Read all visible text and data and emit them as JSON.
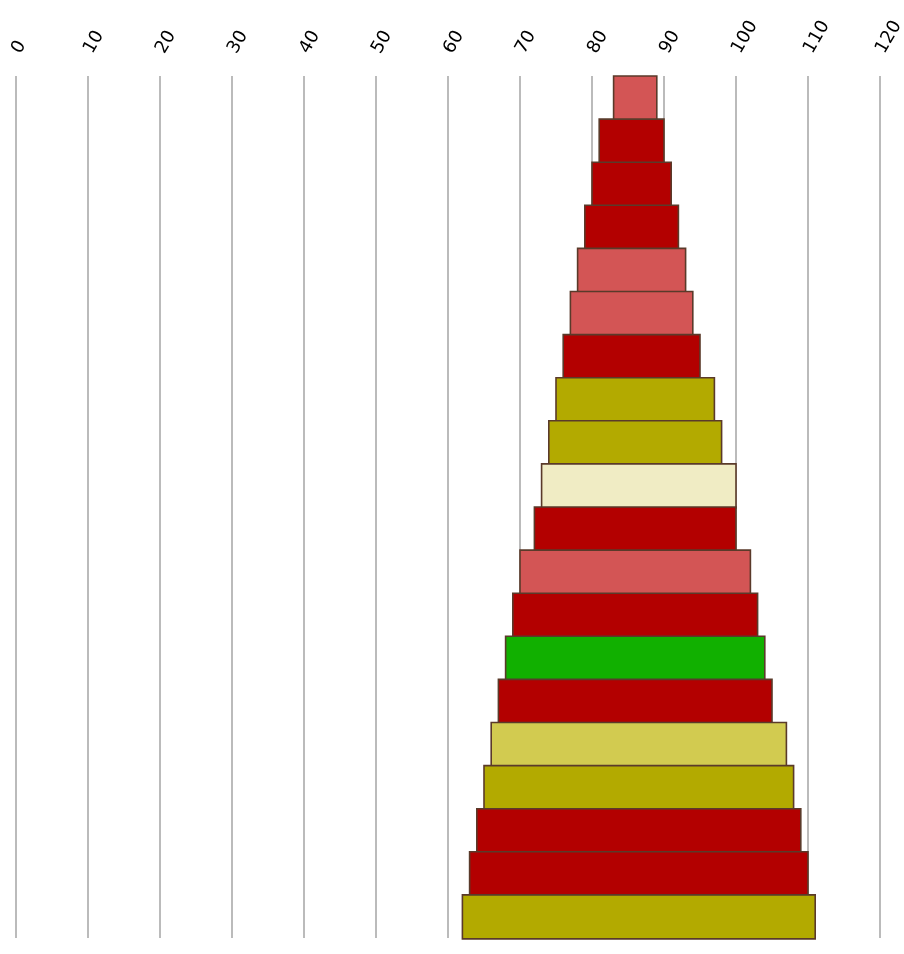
{
  "chart_data": {
    "type": "bar",
    "orientation": "horizontal",
    "categories": [
      null,
      null,
      null,
      null,
      null,
      null,
      null,
      null,
      null,
      null,
      null,
      null,
      null,
      null,
      null,
      null,
      null,
      null,
      null,
      null
    ],
    "base": [
      83,
      81,
      80,
      79,
      78,
      77,
      76,
      75,
      74,
      73,
      72,
      70,
      69,
      68,
      67,
      66,
      65,
      64,
      63,
      62
    ],
    "values": [
      6,
      9,
      11,
      13,
      15,
      17,
      19,
      22,
      24,
      27,
      28,
      32,
      34,
      36,
      38,
      41,
      43,
      45,
      47,
      49
    ],
    "colors": [
      "#d35555",
      "#b30000",
      "#b30000",
      "#b30000",
      "#d35555",
      "#d35555",
      "#b30000",
      "#b3aa00",
      "#b3aa00",
      "#f0ecc4",
      "#b30000",
      "#d35555",
      "#b30000",
      "#11b000",
      "#b30000",
      "#d2cb50",
      "#b3aa00",
      "#b30000",
      "#b30000",
      "#b3aa00"
    ],
    "xlim": [
      0,
      120
    ],
    "xticks": [
      0,
      10,
      20,
      30,
      40,
      50,
      60,
      70,
      80,
      90,
      100,
      110,
      120
    ],
    "grid": "x",
    "tick_labels": "x"
  }
}
